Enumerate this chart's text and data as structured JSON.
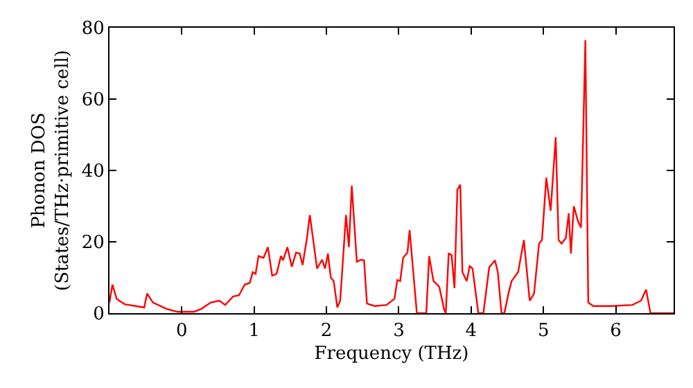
{
  "chart_data": {
    "type": "line",
    "xlabel": "Frequency (THz)",
    "ylabel": "Phonon DOS\n(States/THz·primitive cell)",
    "xlim": [
      -1.0,
      6.8
    ],
    "ylim": [
      0,
      80
    ],
    "xticks": [
      0,
      1,
      2,
      3,
      4,
      5,
      6
    ],
    "yticks": [
      0,
      20,
      40,
      60,
      80
    ],
    "grid": false,
    "marker": "none",
    "line_style": "solid",
    "series": [
      {
        "color": "#ff0000",
        "x": [
          -1.0,
          -0.96,
          -0.9,
          -0.79,
          -0.52,
          -0.48,
          -0.4,
          -0.21,
          -0.06,
          0.17,
          0.27,
          0.4,
          0.52,
          0.6,
          0.71,
          0.79,
          0.87,
          0.94,
          0.98,
          1.02,
          1.06,
          1.13,
          1.19,
          1.25,
          1.31,
          1.37,
          1.4,
          1.46,
          1.52,
          1.58,
          1.63,
          1.67,
          1.73,
          1.77,
          1.87,
          1.94,
          1.98,
          2.02,
          2.06,
          2.1,
          2.15,
          2.19,
          2.27,
          2.31,
          2.35,
          2.42,
          2.48,
          2.52,
          2.56,
          2.67,
          2.83,
          2.94,
          2.98,
          3.02,
          3.06,
          3.12,
          3.15,
          3.25,
          3.38,
          3.42,
          3.48,
          3.56,
          3.63,
          3.65,
          3.69,
          3.73,
          3.77,
          3.81,
          3.85,
          3.88,
          3.94,
          3.98,
          4.02,
          4.1,
          4.17,
          4.25,
          4.33,
          4.37,
          4.42,
          4.46,
          4.52,
          4.56,
          4.65,
          4.73,
          4.81,
          4.87,
          4.94,
          4.98,
          5.04,
          5.1,
          5.17,
          5.21,
          5.25,
          5.31,
          5.35,
          5.38,
          5.42,
          5.48,
          5.52,
          5.58,
          5.62,
          5.69,
          5.94,
          6.23,
          6.35,
          6.42,
          6.48,
          6.8
        ],
        "values": [
          3,
          8,
          4,
          2.5,
          1.6,
          5.5,
          3,
          1.2,
          0.4,
          0.4,
          1.2,
          3,
          3.5,
          2.3,
          4.7,
          5,
          8,
          8.5,
          11.5,
          11,
          16,
          15.5,
          18.5,
          10.5,
          11,
          16,
          14.8,
          18.5,
          13,
          17,
          16.7,
          13.5,
          21,
          27.5,
          12.5,
          15,
          12.5,
          16.7,
          10,
          9,
          1.6,
          3.5,
          27.5,
          18.5,
          35.7,
          14.4,
          15,
          14.8,
          2.7,
          2,
          2.3,
          4,
          9.3,
          9,
          15.5,
          17,
          23.3,
          0,
          0,
          16,
          9,
          7.4,
          0.8,
          0,
          16.7,
          16.3,
          7,
          34.6,
          36,
          11.5,
          9,
          13.2,
          12.5,
          0,
          0,
          12.8,
          14.8,
          11.5,
          0,
          0,
          5.8,
          9,
          11.5,
          20.5,
          3.5,
          5.4,
          19.5,
          20.5,
          38,
          28.7,
          49.3,
          20.5,
          19.5,
          21,
          28,
          16.7,
          30,
          25.6,
          24,
          76.5,
          3,
          2,
          2,
          2.3,
          3.5,
          6.6,
          0,
          0
        ]
      }
    ]
  }
}
